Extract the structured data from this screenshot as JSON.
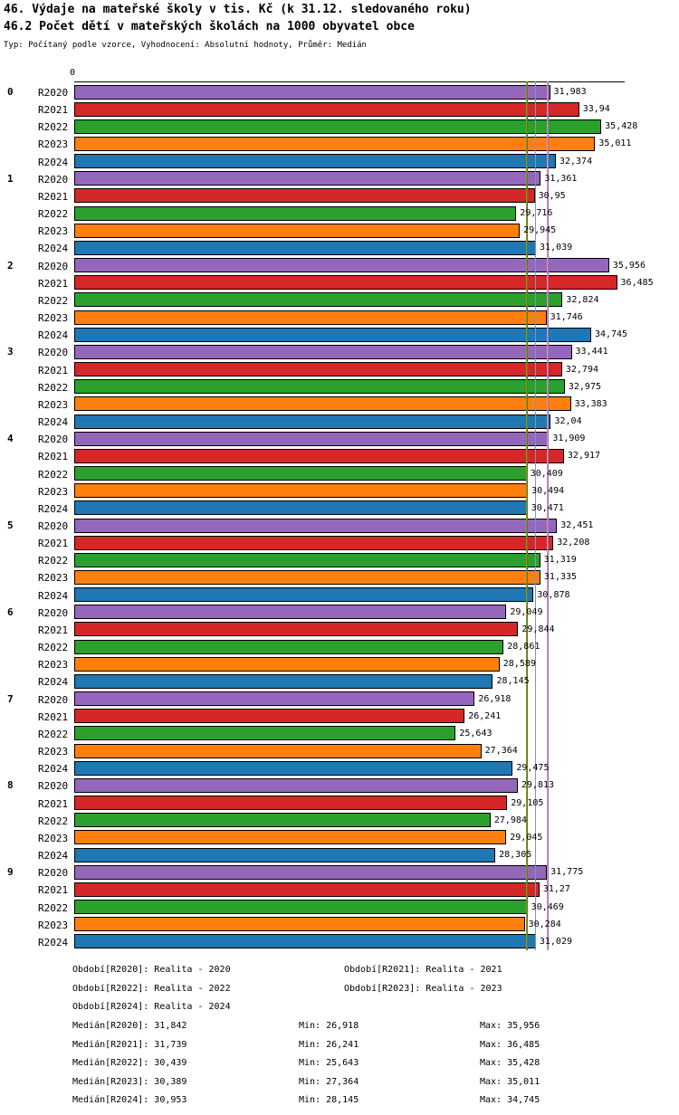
{
  "chart_data": {
    "type": "bar",
    "orientation": "horizontal",
    "title": "46. Výdaje na mateřské školy v tis. Kč (k 31.12. sledovaného roku)",
    "subtitle": "46.2 Počet dětí v mateřských školách na 1000 obyvatel obce",
    "meta": "Typ: Počítaný podle vzorce, Vyhodnocení: Absolutní hodnoty, Průměr: Medián",
    "xlim": [
      0,
      37
    ],
    "axis_tick": "0",
    "grid": false,
    "legend_position": "bottom",
    "categories": [
      "0",
      "1",
      "2",
      "3",
      "4",
      "5",
      "6",
      "7",
      "8",
      "9"
    ],
    "series": [
      {
        "name": "R2020",
        "color": "#9467bd",
        "median": 31.842,
        "median_line_color": "#8f7bb5",
        "values": [
          31.983,
          31.361,
          35.956,
          33.441,
          31.909,
          32.451,
          29.049,
          26.918,
          29.813,
          31.775
        ],
        "labels": [
          "31,983",
          "31,361",
          "35,956",
          "33,441",
          "31,909",
          "32,451",
          "29,049",
          "26,918",
          "29,813",
          "31,775"
        ]
      },
      {
        "name": "R2021",
        "color": "#d62728",
        "median": 31.739,
        "median_line_color": "#e38fae",
        "values": [
          33.94,
          30.95,
          36.485,
          32.794,
          32.917,
          32.208,
          29.844,
          26.241,
          29.105,
          31.27
        ],
        "labels": [
          "33,94",
          "30,95",
          "36,485",
          "32,794",
          "32,917",
          "32,208",
          "29,844",
          "26,241",
          "29,105",
          "31,27"
        ]
      },
      {
        "name": "R2022",
        "color": "#2ca02c",
        "median": 30.439,
        "median_line_color": "#2e8b2e",
        "values": [
          35.428,
          29.716,
          32.824,
          32.975,
          30.409,
          31.319,
          28.861,
          25.643,
          27.984,
          30.469
        ],
        "labels": [
          "35,428",
          "29,716",
          "32,824",
          "32,975",
          "30,409",
          "31,319",
          "28,861",
          "25,643",
          "27,984",
          "30,469"
        ]
      },
      {
        "name": "R2023",
        "color": "#ff7f0e",
        "median": 30.389,
        "median_line_color": "#b8860b",
        "values": [
          35.011,
          29.945,
          31.746,
          33.383,
          30.494,
          31.335,
          28.589,
          27.364,
          29.045,
          30.284
        ],
        "labels": [
          "35,011",
          "29,945",
          "31,746",
          "33,383",
          "30,494",
          "31,335",
          "28,589",
          "27,364",
          "29,045",
          "30,284"
        ]
      },
      {
        "name": "R2024",
        "color": "#1f77b4",
        "median": 30.953,
        "median_line_color": "#7a9ab5",
        "values": [
          32.374,
          31.039,
          34.745,
          32.04,
          30.471,
          30.878,
          28.145,
          29.475,
          28.305,
          31.029
        ],
        "labels": [
          "32,374",
          "31,039",
          "34,745",
          "32,04",
          "30,471",
          "30,878",
          "28,145",
          "29,475",
          "28,305",
          "31,029"
        ]
      }
    ],
    "legend_rows": [
      [
        "Období[R2020]: Realita - 2020",
        "Období[R2021]: Realita - 2021"
      ],
      [
        "Období[R2022]: Realita - 2022",
        "Období[R2023]: Realita - 2023"
      ],
      [
        "Období[R2024]: Realita - 2024"
      ]
    ],
    "stats_rows": [
      [
        "Medián[R2020]: 31,842",
        "Min: 26,918",
        "Max: 35,956"
      ],
      [
        "Medián[R2021]: 31,739",
        "Min: 26,241",
        "Max: 36,485"
      ],
      [
        "Medián[R2022]: 30,439",
        "Min: 25,643",
        "Max: 35,428"
      ],
      [
        "Medián[R2023]: 30,389",
        "Min: 27,364",
        "Max: 35,011"
      ],
      [
        "Medián[R2024]: 30,953",
        "Min: 28,145",
        "Max: 34,745"
      ]
    ]
  }
}
